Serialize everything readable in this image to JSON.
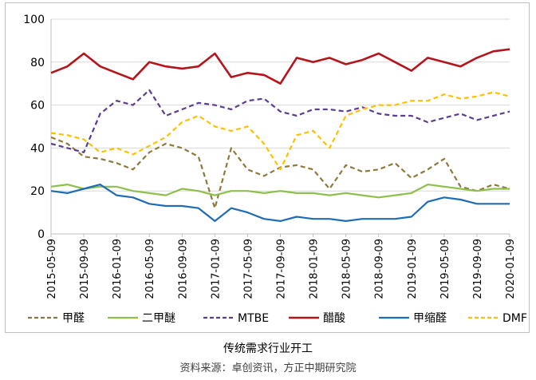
{
  "chart_data": {
    "type": "line",
    "title": "传统需求行业开工",
    "source": "资料来源：卓创资讯，方正中期研究院",
    "ylim": [
      0,
      100
    ],
    "yticks": [
      0,
      20,
      40,
      60,
      80,
      100
    ],
    "grid": true,
    "legend_position": "bottom",
    "x_ticks": [
      "2015-05-09",
      "2015-09-09",
      "2016-01-09",
      "2016-05-09",
      "2016-09-09",
      "2017-01-09",
      "2017-05-09",
      "2017-09-09",
      "2018-01-09",
      "2018-05-09",
      "2018-09-09",
      "2019-01-09",
      "2019-05-09",
      "2019-09-09",
      "2020-01-09"
    ],
    "x": [
      "2015-05",
      "2015-07",
      "2015-09",
      "2015-11",
      "2016-01",
      "2016-03",
      "2016-05",
      "2016-07",
      "2016-09",
      "2016-11",
      "2017-01",
      "2017-03",
      "2017-05",
      "2017-07",
      "2017-09",
      "2017-11",
      "2018-01",
      "2018-03",
      "2018-05",
      "2018-07",
      "2018-09",
      "2018-11",
      "2019-01",
      "2019-03",
      "2019-05",
      "2019-07",
      "2019-09",
      "2019-11",
      "2020-01"
    ],
    "series": [
      {
        "name": "甲醛",
        "color": "#8c7a3c",
        "dash": "6,4",
        "values": [
          45,
          42,
          36,
          35,
          33,
          30,
          38,
          42,
          40,
          36,
          12,
          40,
          30,
          27,
          31,
          32,
          30,
          21,
          32,
          29,
          30,
          33,
          26,
          30,
          35,
          22,
          20,
          23,
          21
        ]
      },
      {
        "name": "二甲醚",
        "color": "#8fbf4d",
        "dash": "",
        "values": [
          22,
          23,
          21,
          22,
          22,
          20,
          19,
          18,
          21,
          20,
          18,
          20,
          20,
          19,
          20,
          19,
          19,
          18,
          19,
          18,
          17,
          18,
          19,
          23,
          22,
          21,
          20,
          21,
          21
        ]
      },
      {
        "name": "MTBE",
        "color": "#5b3d91",
        "dash": "6,4",
        "values": [
          42,
          40,
          38,
          56,
          62,
          60,
          67,
          55,
          58,
          61,
          60,
          58,
          62,
          63,
          57,
          55,
          58,
          58,
          57,
          59,
          56,
          55,
          55,
          52,
          54,
          56,
          53,
          55,
          57
        ]
      },
      {
        "name": "醋酸",
        "color": "#b5141b",
        "dash": "",
        "values": [
          75,
          78,
          84,
          78,
          75,
          72,
          80,
          78,
          77,
          78,
          84,
          73,
          75,
          74,
          70,
          82,
          80,
          82,
          79,
          81,
          84,
          80,
          76,
          82,
          80,
          78,
          82,
          85,
          86
        ]
      },
      {
        "name": "甲缩醛",
        "color": "#1f6cb5",
        "dash": "",
        "values": [
          20,
          19,
          21,
          23,
          18,
          17,
          14,
          13,
          13,
          12,
          6,
          12,
          10,
          7,
          6,
          8,
          7,
          7,
          6,
          7,
          7,
          7,
          8,
          15,
          17,
          16,
          14,
          14,
          14
        ]
      },
      {
        "name": "DMF",
        "color": "#ffc000",
        "dash": "6,4",
        "values": [
          47,
          46,
          44,
          38,
          40,
          37,
          41,
          45,
          52,
          55,
          50,
          48,
          50,
          42,
          30,
          46,
          48,
          40,
          55,
          58,
          60,
          60,
          62,
          62,
          65,
          63,
          64,
          66,
          64
        ]
      }
    ]
  }
}
